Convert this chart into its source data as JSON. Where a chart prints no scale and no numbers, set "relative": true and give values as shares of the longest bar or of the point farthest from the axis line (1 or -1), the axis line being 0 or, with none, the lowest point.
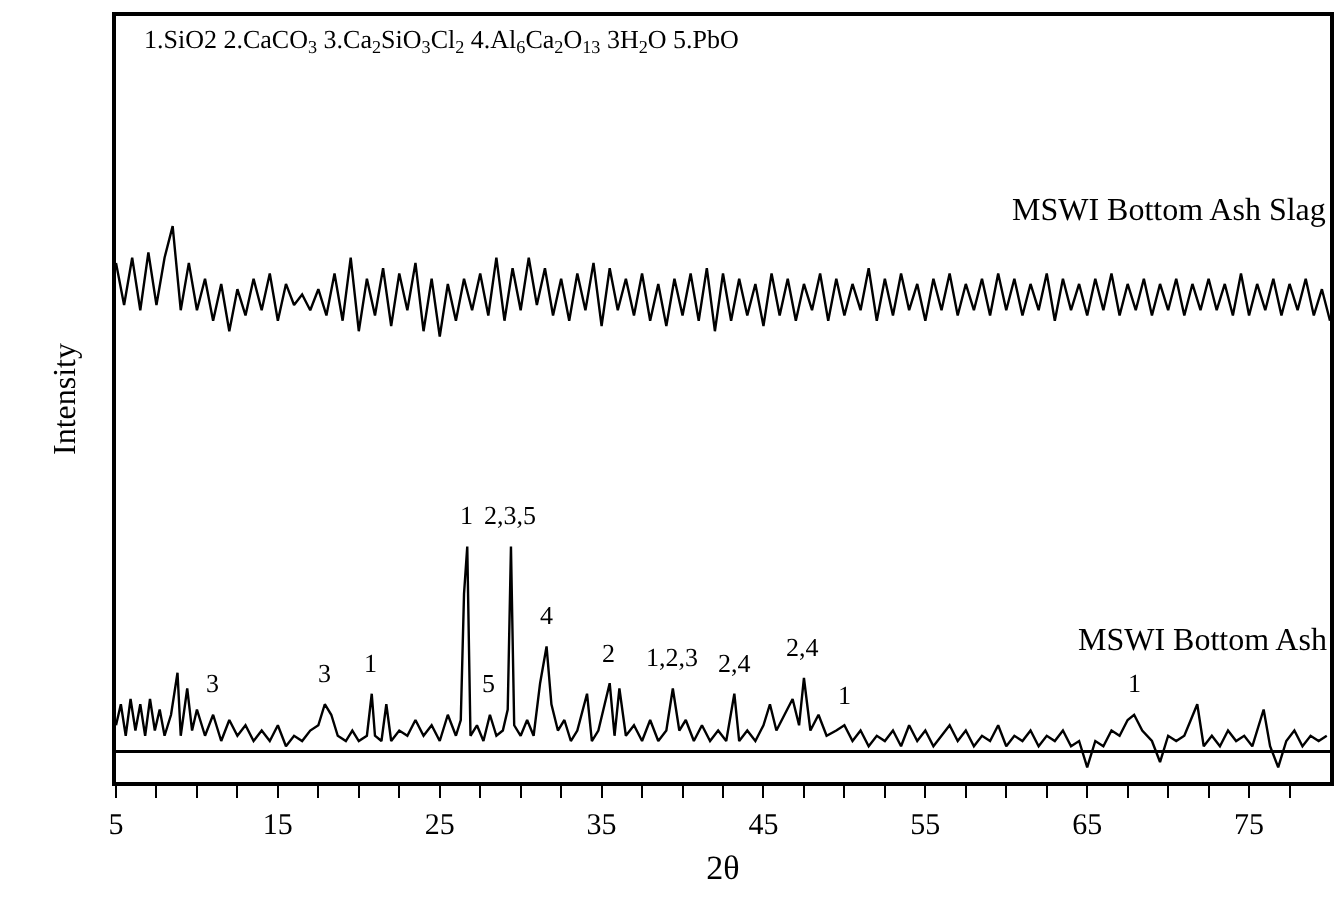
{
  "chart_data": {
    "type": "line",
    "relative": true,
    "xlabel": "2θ",
    "ylabel": "Intensity",
    "xlim": [
      5,
      80
    ],
    "xticks": [
      5,
      {
        "value": 7.5,
        "label": null
      },
      {
        "value": 10,
        "label": null
      },
      {
        "value": 12.5,
        "label": null
      },
      15,
      {
        "value": 17.5,
        "label": null
      },
      {
        "value": 20,
        "label": null
      },
      {
        "value": 22.5,
        "label": null
      },
      25,
      {
        "value": 27.5,
        "label": null
      },
      {
        "value": 30,
        "label": null
      },
      {
        "value": 32.5,
        "label": null
      },
      35,
      {
        "value": 37.5,
        "label": null
      },
      {
        "value": 40,
        "label": null
      },
      {
        "value": 42.5,
        "label": null
      },
      45,
      {
        "value": 47.5,
        "label": null
      },
      {
        "value": 50,
        "label": null
      },
      {
        "value": 52.5,
        "label": null
      },
      55,
      {
        "value": 57.5,
        "label": null
      },
      {
        "value": 60,
        "label": null
      },
      {
        "value": 62.5,
        "label": null
      },
      65,
      {
        "value": 67.5,
        "label": null
      },
      {
        "value": 70,
        "label": null
      },
      {
        "value": 72.5,
        "label": null
      },
      75,
      {
        "value": 77.5,
        "label": null
      }
    ],
    "tick_labels": "x",
    "legend": false,
    "marker": "none",
    "line_style": "solid",
    "series": [
      {
        "name": "MSWI Bottom Ash Slag",
        "color": "#000000",
        "x": [
          5,
          5.5,
          6,
          6.5,
          7,
          7.5,
          8,
          8.5,
          9,
          9.5,
          10,
          10.5,
          11,
          11.5,
          12,
          12.5,
          13,
          13.5,
          14,
          14.5,
          15,
          15.5,
          16,
          16.5,
          17,
          17.5,
          18,
          18.5,
          19,
          19.5,
          20,
          20.5,
          21,
          21.5,
          22,
          22.5,
          23,
          23.5,
          24,
          24.5,
          25,
          25.5,
          26,
          26.5,
          27,
          27.5,
          28,
          28.5,
          29,
          29.5,
          30,
          30.5,
          31,
          31.5,
          32,
          32.5,
          33,
          33.5,
          34,
          34.5,
          35,
          35.5,
          36,
          36.5,
          37,
          37.5,
          38,
          38.5,
          39,
          39.5,
          40,
          40.5,
          41,
          41.5,
          42,
          42.5,
          43,
          43.5,
          44,
          44.5,
          45,
          45.5,
          46,
          46.5,
          47,
          47.5,
          48,
          48.5,
          49,
          49.5,
          50,
          50.5,
          51,
          51.5,
          52,
          52.5,
          53,
          53.5,
          54,
          54.5,
          55,
          55.5,
          56,
          56.5,
          57,
          57.5,
          58,
          58.5,
          59,
          59.5,
          60,
          60.5,
          61,
          61.5,
          62,
          62.5,
          63,
          63.5,
          64,
          64.5,
          65,
          65.5,
          66,
          66.5,
          67,
          67.5,
          68,
          68.5,
          69,
          69.5,
          70,
          70.5,
          71,
          71.5,
          72,
          72.5,
          73,
          73.5,
          74,
          74.5,
          75,
          75.5,
          76,
          76.5,
          77,
          77.5,
          78,
          78.5,
          79,
          79.5,
          80
        ],
        "values": [
          0.93,
          0.85,
          0.94,
          0.84,
          0.95,
          0.85,
          0.94,
          1.0,
          0.84,
          0.93,
          0.84,
          0.9,
          0.82,
          0.89,
          0.8,
          0.88,
          0.83,
          0.9,
          0.84,
          0.91,
          0.82,
          0.89,
          0.85,
          0.87,
          0.84,
          0.88,
          0.83,
          0.91,
          0.82,
          0.94,
          0.8,
          0.9,
          0.83,
          0.92,
          0.81,
          0.91,
          0.84,
          0.93,
          0.8,
          0.9,
          0.79,
          0.89,
          0.82,
          0.9,
          0.84,
          0.91,
          0.83,
          0.94,
          0.82,
          0.92,
          0.84,
          0.94,
          0.85,
          0.92,
          0.83,
          0.9,
          0.82,
          0.91,
          0.84,
          0.93,
          0.81,
          0.92,
          0.84,
          0.9,
          0.83,
          0.91,
          0.82,
          0.89,
          0.81,
          0.9,
          0.83,
          0.91,
          0.82,
          0.92,
          0.8,
          0.91,
          0.82,
          0.9,
          0.83,
          0.89,
          0.81,
          0.91,
          0.83,
          0.9,
          0.82,
          0.89,
          0.84,
          0.91,
          0.82,
          0.9,
          0.83,
          0.89,
          0.84,
          0.92,
          0.82,
          0.9,
          0.83,
          0.91,
          0.84,
          0.89,
          0.82,
          0.9,
          0.84,
          0.91,
          0.83,
          0.89,
          0.84,
          0.9,
          0.83,
          0.91,
          0.84,
          0.9,
          0.83,
          0.89,
          0.84,
          0.91,
          0.82,
          0.9,
          0.84,
          0.89,
          0.83,
          0.9,
          0.84,
          0.91,
          0.83,
          0.89,
          0.84,
          0.9,
          0.83,
          0.89,
          0.84,
          0.9,
          0.83,
          0.89,
          0.84,
          0.9,
          0.84,
          0.89,
          0.83,
          0.91,
          0.83,
          0.89,
          0.84,
          0.9,
          0.83,
          0.89,
          0.84,
          0.9,
          0.83,
          0.88,
          0.82
        ]
      },
      {
        "name": "MSWI Bottom Ash",
        "color": "#000000",
        "x": [
          5,
          5.3,
          5.6,
          5.9,
          6.2,
          6.5,
          6.8,
          7.1,
          7.4,
          7.7,
          8.0,
          8.4,
          8.8,
          9.0,
          9.4,
          9.7,
          10.0,
          10.5,
          11,
          11.5,
          12,
          12.5,
          13,
          13.5,
          14,
          14.5,
          15,
          15.5,
          16,
          16.5,
          17,
          17.5,
          17.9,
          18.3,
          18.7,
          19.2,
          19.6,
          20.0,
          20.5,
          20.8,
          21.0,
          21.4,
          21.7,
          22.0,
          22.5,
          23,
          23.5,
          24.0,
          24.5,
          25,
          25.5,
          26.0,
          26.3,
          26.5,
          26.7,
          26.9,
          27.3,
          27.7,
          28.1,
          28.5,
          28.9,
          29.2,
          29.4,
          29.6,
          30.0,
          30.4,
          30.8,
          31.2,
          31.6,
          31.9,
          32.3,
          32.7,
          33.1,
          33.5,
          34.1,
          34.4,
          34.8,
          35.5,
          35.8,
          36.1,
          36.5,
          37,
          37.5,
          38,
          38.5,
          39.0,
          39.4,
          39.8,
          40.2,
          40.7,
          41.2,
          41.7,
          42.2,
          42.7,
          43.2,
          43.5,
          44.0,
          44.5,
          45.0,
          45.4,
          45.8,
          46.3,
          46.8,
          47.2,
          47.5,
          47.9,
          48.4,
          48.9,
          49.5,
          50.0,
          50.5,
          51,
          51.5,
          52,
          52.5,
          53,
          53.5,
          54,
          54.5,
          55,
          55.5,
          56,
          56.5,
          57,
          57.5,
          58,
          58.5,
          59,
          59.5,
          60,
          60.5,
          61,
          61.5,
          62,
          62.5,
          63,
          63.5,
          64,
          64.5,
          65,
          65.5,
          66,
          66.5,
          67,
          67.5,
          67.9,
          68.4,
          69,
          69.5,
          70,
          70.5,
          71,
          71.8,
          72.2,
          72.7,
          73.2,
          73.7,
          74.2,
          74.7,
          75.2,
          75.9,
          76.3,
          76.8,
          77.3,
          77.8,
          78.3,
          78.8,
          79.3,
          79.8
        ],
        "values": [
          0.05,
          0.09,
          0.03,
          0.1,
          0.04,
          0.09,
          0.03,
          0.1,
          0.04,
          0.08,
          0.03,
          0.07,
          0.15,
          0.03,
          0.12,
          0.04,
          0.08,
          0.03,
          0.07,
          0.02,
          0.06,
          0.03,
          0.05,
          0.02,
          0.04,
          0.02,
          0.05,
          0.01,
          0.03,
          0.02,
          0.04,
          0.05,
          0.09,
          0.07,
          0.03,
          0.02,
          0.04,
          0.02,
          0.03,
          0.11,
          0.03,
          0.02,
          0.09,
          0.02,
          0.04,
          0.03,
          0.06,
          0.03,
          0.05,
          0.02,
          0.07,
          0.03,
          0.06,
          0.3,
          0.39,
          0.03,
          0.05,
          0.02,
          0.07,
          0.03,
          0.04,
          0.08,
          0.39,
          0.05,
          0.03,
          0.06,
          0.03,
          0.13,
          0.2,
          0.09,
          0.04,
          0.06,
          0.02,
          0.04,
          0.11,
          0.02,
          0.04,
          0.13,
          0.03,
          0.12,
          0.03,
          0.05,
          0.02,
          0.06,
          0.02,
          0.04,
          0.12,
          0.04,
          0.06,
          0.02,
          0.05,
          0.02,
          0.04,
          0.02,
          0.11,
          0.02,
          0.04,
          0.02,
          0.05,
          0.09,
          0.04,
          0.07,
          0.1,
          0.05,
          0.14,
          0.04,
          0.07,
          0.03,
          0.04,
          0.05,
          0.02,
          0.04,
          0.01,
          0.03,
          0.02,
          0.04,
          0.01,
          0.05,
          0.02,
          0.04,
          0.01,
          0.03,
          0.05,
          0.02,
          0.04,
          0.01,
          0.03,
          0.02,
          0.05,
          0.01,
          0.03,
          0.02,
          0.04,
          0.01,
          0.03,
          0.02,
          0.04,
          0.01,
          0.02,
          -0.03,
          0.02,
          0.01,
          0.04,
          0.03,
          0.06,
          0.07,
          0.04,
          0.02,
          -0.02,
          0.03,
          0.02,
          0.03,
          0.09,
          0.01,
          0.03,
          0.01,
          0.04,
          0.02,
          0.03,
          0.01,
          0.08,
          0.01,
          -0.03,
          0.02,
          0.04,
          0.01,
          0.03,
          0.02,
          0.03
        ]
      }
    ],
    "annotations": [
      "1.SiO2 2.CaCO$_{3}$ 3.Ca$_{2}$SiO$_{3}$Cl$_{2}$ 4.Al$_{6}$Ca$_{2}$O$_{13}$ 3H$_{2}$O 5.PbO",
      {
        "text": "3",
        "x": 11,
        "y": 0.07
      },
      {
        "text": "3",
        "x": 17.9,
        "y": 0.09
      },
      {
        "text": "1",
        "x": 20.8,
        "y": 0.11
      },
      {
        "text": "1",
        "x": 26.7,
        "y": 0.39
      },
      {
        "text": "2,3,5",
        "x": 29.4,
        "y": 0.39
      },
      {
        "text": "5",
        "x": 28.1,
        "y": 0.07
      },
      {
        "text": "4",
        "x": 31.6,
        "y": 0.2
      },
      {
        "text": "2",
        "x": 35.5,
        "y": 0.13
      },
      {
        "text": "1,2,3",
        "x": 39.4,
        "y": 0.12
      },
      {
        "text": "2,4",
        "x": 43.2,
        "y": 0.11
      },
      {
        "text": "2,4",
        "x": 47.5,
        "y": 0.14
      },
      {
        "text": "1",
        "x": 50.0,
        "y": 0.05
      },
      {
        "text": "1",
        "x": 67.9,
        "y": 0.07
      }
    ]
  }
}
